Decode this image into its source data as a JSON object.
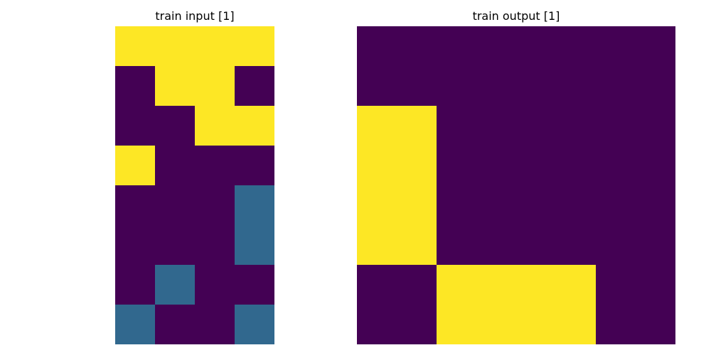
{
  "colors": {
    "0": "#440154",
    "1": "#31688e",
    "2": "#fde725"
  },
  "chart_data": [
    {
      "type": "heatmap",
      "title": "train input [1]",
      "grid": [
        [
          2,
          2,
          2,
          2
        ],
        [
          0,
          2,
          2,
          0
        ],
        [
          0,
          0,
          2,
          2
        ],
        [
          2,
          0,
          0,
          0
        ],
        [
          0,
          0,
          0,
          1
        ],
        [
          0,
          0,
          0,
          1
        ],
        [
          0,
          1,
          0,
          0
        ],
        [
          1,
          0,
          0,
          1
        ]
      ]
    },
    {
      "type": "heatmap",
      "title": "train output [1]",
      "grid": [
        [
          0,
          0,
          0,
          0
        ],
        [
          2,
          0,
          0,
          0
        ],
        [
          2,
          0,
          0,
          0
        ],
        [
          0,
          2,
          2,
          0
        ]
      ]
    }
  ]
}
